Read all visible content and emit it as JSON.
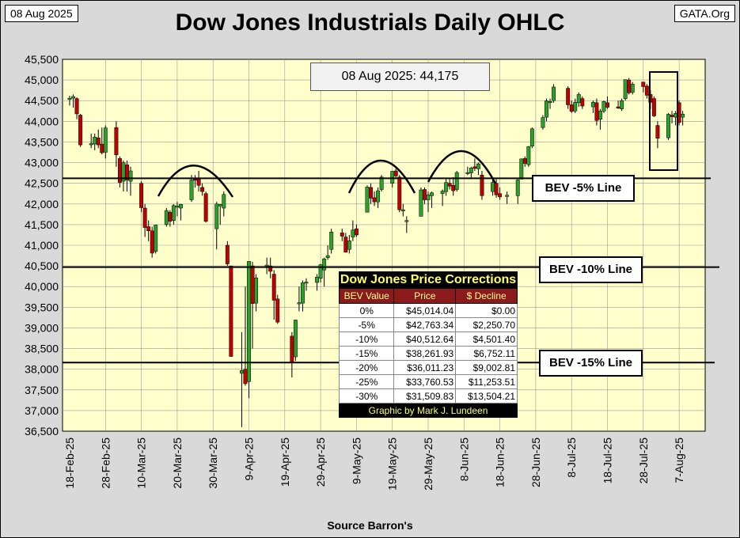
{
  "header": {
    "date_label": "08 Aug 2025",
    "site": "GATA.Org",
    "title": "Dow Jones Industrials Daily OHLC"
  },
  "source": "Source Barron's",
  "annotation": "08 Aug 2025: 44,175",
  "bev_labels": {
    "bev5": "BEV -5% Line",
    "bev10": "BEV -10% Line",
    "bev15": "BEV -15% Line"
  },
  "price_table": {
    "title": "Dow Jones Price Corrections",
    "headers": [
      "BEV Value",
      "Price",
      "$ Decline"
    ],
    "rows": [
      [
        "0%",
        "$45,014.04",
        "$0.00"
      ],
      [
        "-5%",
        "$42,763.34",
        "$2,250.70"
      ],
      [
        "-10%",
        "$40,512.64",
        "$4,501.40"
      ],
      [
        "-15%",
        "$38,261.93",
        "$6,752.11"
      ],
      [
        "-20%",
        "$36,011.23",
        "$9,002.81"
      ],
      [
        "-25%",
        "$33,760.53",
        "$11,253.51"
      ],
      [
        "-30%",
        "$31,509.83",
        "$13,504.21"
      ]
    ],
    "credit": "Graphic by Mark J. Lundeen"
  },
  "colors": {
    "plot_bg": "#ffffcc",
    "up": "#2ca02c",
    "down": "#c00000",
    "grid": "#999999"
  },
  "chart_data": {
    "type": "ohlc",
    "ylim": [
      36500,
      45500
    ],
    "y_ticks": [
      "45,500",
      "45,000",
      "44,500",
      "44,000",
      "43,500",
      "43,000",
      "42,500",
      "42,000",
      "41,500",
      "41,000",
      "40,500",
      "40,000",
      "39,500",
      "39,000",
      "38,500",
      "38,000",
      "37,500",
      "37,000",
      "36,500"
    ],
    "x_ticks": [
      "18-Feb-25",
      "28-Feb-25",
      "10-Mar-25",
      "20-Mar-25",
      "30-Mar-25",
      "9-Apr-25",
      "19-Apr-25",
      "29-Apr-25",
      "9-May-25",
      "19-May-25",
      "29-May-25",
      "8-Jun-25",
      "18-Jun-25",
      "28-Jun-25",
      "8-Jul-25",
      "18-Jul-25",
      "28-Jul-25",
      "7-Aug-25"
    ],
    "reference_lines": [
      {
        "label": "BEV -5% Line",
        "value": 42620
      },
      {
        "label": "BEV -10% Line",
        "value": 40470
      },
      {
        "label": "BEV -15% Line",
        "value": 38160
      }
    ],
    "bars": [
      {
        "x": "2025-02-18",
        "o": 44530,
        "h": 44620,
        "l": 44380,
        "c": 44560
      },
      {
        "x": "2025-02-19",
        "o": 44560,
        "h": 44650,
        "l": 44330,
        "c": 44600
      },
      {
        "x": "2025-02-20",
        "o": 44550,
        "h": 44580,
        "l": 44050,
        "c": 44180
      },
      {
        "x": "2025-02-21",
        "o": 44150,
        "h": 44180,
        "l": 43380,
        "c": 43430
      },
      {
        "x": "2025-02-24",
        "o": 43450,
        "h": 43700,
        "l": 43350,
        "c": 43460
      },
      {
        "x": "2025-02-25",
        "o": 43450,
        "h": 43700,
        "l": 43300,
        "c": 43620
      },
      {
        "x": "2025-02-26",
        "o": 43600,
        "h": 43800,
        "l": 43350,
        "c": 43430
      },
      {
        "x": "2025-02-27",
        "o": 43450,
        "h": 43850,
        "l": 43200,
        "c": 43240
      },
      {
        "x": "2025-02-28",
        "o": 43250,
        "h": 43900,
        "l": 43100,
        "c": 43840
      },
      {
        "x": "2025-03-03",
        "o": 43850,
        "h": 44000,
        "l": 42900,
        "c": 43190
      },
      {
        "x": "2025-03-04",
        "o": 43100,
        "h": 43150,
        "l": 42400,
        "c": 42520
      },
      {
        "x": "2025-03-05",
        "o": 42550,
        "h": 43050,
        "l": 42300,
        "c": 43000
      },
      {
        "x": "2025-03-06",
        "o": 42950,
        "h": 43050,
        "l": 42300,
        "c": 42580
      },
      {
        "x": "2025-03-07",
        "o": 42550,
        "h": 42900,
        "l": 42200,
        "c": 42800
      },
      {
        "x": "2025-03-10",
        "o": 42500,
        "h": 42550,
        "l": 41800,
        "c": 41910
      },
      {
        "x": "2025-03-11",
        "o": 41900,
        "h": 42000,
        "l": 41200,
        "c": 41430
      },
      {
        "x": "2025-03-12",
        "o": 41450,
        "h": 41600,
        "l": 41100,
        "c": 41350
      },
      {
        "x": "2025-03-13",
        "o": 41350,
        "h": 41450,
        "l": 40700,
        "c": 40810
      },
      {
        "x": "2025-03-14",
        "o": 40850,
        "h": 41500,
        "l": 40800,
        "c": 41490
      },
      {
        "x": "2025-03-17",
        "o": 41500,
        "h": 41900,
        "l": 41450,
        "c": 41840
      },
      {
        "x": "2025-03-18",
        "o": 41800,
        "h": 41850,
        "l": 41450,
        "c": 41580
      },
      {
        "x": "2025-03-19",
        "o": 41600,
        "h": 42000,
        "l": 41500,
        "c": 41960
      },
      {
        "x": "2025-03-20",
        "o": 41950,
        "h": 42050,
        "l": 41700,
        "c": 41950
      },
      {
        "x": "2025-03-21",
        "o": 41900,
        "h": 42000,
        "l": 41600,
        "c": 41990
      },
      {
        "x": "2025-03-24",
        "o": 42100,
        "h": 42700,
        "l": 42050,
        "c": 42580
      },
      {
        "x": "2025-03-25",
        "o": 42600,
        "h": 42700,
        "l": 42400,
        "c": 42590
      },
      {
        "x": "2025-03-26",
        "o": 42600,
        "h": 42800,
        "l": 42300,
        "c": 42450
      },
      {
        "x": "2025-03-27",
        "o": 42400,
        "h": 42500,
        "l": 42200,
        "c": 42300
      },
      {
        "x": "2025-03-28",
        "o": 42250,
        "h": 42300,
        "l": 41550,
        "c": 41580
      },
      {
        "x": "2025-03-31",
        "o": 41400,
        "h": 42050,
        "l": 40900,
        "c": 42000
      },
      {
        "x": "2025-04-01",
        "o": 41950,
        "h": 42000,
        "l": 41500,
        "c": 41990
      },
      {
        "x": "2025-04-02",
        "o": 41900,
        "h": 42300,
        "l": 41700,
        "c": 42230
      },
      {
        "x": "2025-04-03",
        "o": 41000,
        "h": 41100,
        "l": 40500,
        "c": 40550
      },
      {
        "x": "2025-04-04",
        "o": 40500,
        "h": 40500,
        "l": 38300,
        "c": 38310
      },
      {
        "x": "2025-04-07",
        "o": 37900,
        "h": 38900,
        "l": 36600,
        "c": 37970
      },
      {
        "x": "2025-04-08",
        "o": 38000,
        "h": 40000,
        "l": 37600,
        "c": 37650
      },
      {
        "x": "2025-04-09",
        "o": 37700,
        "h": 40600,
        "l": 37300,
        "c": 40610
      },
      {
        "x": "2025-04-10",
        "o": 40500,
        "h": 40600,
        "l": 38500,
        "c": 39590
      },
      {
        "x": "2025-04-11",
        "o": 39600,
        "h": 40300,
        "l": 39400,
        "c": 40210
      },
      {
        "x": "2025-04-14",
        "o": 40500,
        "h": 40700,
        "l": 40300,
        "c": 40520
      },
      {
        "x": "2025-04-15",
        "o": 40500,
        "h": 40700,
        "l": 40200,
        "c": 40370
      },
      {
        "x": "2025-04-16",
        "o": 40300,
        "h": 40400,
        "l": 39200,
        "c": 39670
      },
      {
        "x": "2025-04-17",
        "o": 39700,
        "h": 39800,
        "l": 39100,
        "c": 39140
      },
      {
        "x": "2025-04-21",
        "o": 38800,
        "h": 38900,
        "l": 37800,
        "c": 38170
      },
      {
        "x": "2025-04-22",
        "o": 38300,
        "h": 39200,
        "l": 38200,
        "c": 39190
      },
      {
        "x": "2025-04-23",
        "o": 39600,
        "h": 40000,
        "l": 39400,
        "c": 39610
      },
      {
        "x": "2025-04-24",
        "o": 39600,
        "h": 40150,
        "l": 39400,
        "c": 40090
      },
      {
        "x": "2025-04-25",
        "o": 40100,
        "h": 40200,
        "l": 39900,
        "c": 40110
      },
      {
        "x": "2025-04-28",
        "o": 40100,
        "h": 40300,
        "l": 39900,
        "c": 40230
      },
      {
        "x": "2025-04-29",
        "o": 40200,
        "h": 40550,
        "l": 40100,
        "c": 40530
      },
      {
        "x": "2025-04-30",
        "o": 40400,
        "h": 40700,
        "l": 40000,
        "c": 40670
      },
      {
        "x": "2025-05-01",
        "o": 40700,
        "h": 41000,
        "l": 40650,
        "c": 40750
      },
      {
        "x": "2025-05-02",
        "o": 40900,
        "h": 41400,
        "l": 40800,
        "c": 41320
      },
      {
        "x": "2025-05-05",
        "o": 41300,
        "h": 41400,
        "l": 41100,
        "c": 41220
      },
      {
        "x": "2025-05-06",
        "o": 41200,
        "h": 41300,
        "l": 40900,
        "c": 40830
      },
      {
        "x": "2025-05-07",
        "o": 40900,
        "h": 41250,
        "l": 40800,
        "c": 41110
      },
      {
        "x": "2025-05-08",
        "o": 41200,
        "h": 41600,
        "l": 41100,
        "c": 41370
      },
      {
        "x": "2025-05-09",
        "o": 41400,
        "h": 41500,
        "l": 41200,
        "c": 41250
      },
      {
        "x": "2025-05-12",
        "o": 41800,
        "h": 42450,
        "l": 41800,
        "c": 42410
      },
      {
        "x": "2025-05-13",
        "o": 42400,
        "h": 42500,
        "l": 42000,
        "c": 42140
      },
      {
        "x": "2025-05-14",
        "o": 42150,
        "h": 42300,
        "l": 41950,
        "c": 42050
      },
      {
        "x": "2025-05-15",
        "o": 42050,
        "h": 42400,
        "l": 41900,
        "c": 42320
      },
      {
        "x": "2025-05-16",
        "o": 42350,
        "h": 42700,
        "l": 42300,
        "c": 42650
      },
      {
        "x": "2025-05-19",
        "o": 42500,
        "h": 42800,
        "l": 42400,
        "c": 42790
      },
      {
        "x": "2025-05-20",
        "o": 42800,
        "h": 42850,
        "l": 42600,
        "c": 42680
      },
      {
        "x": "2025-05-21",
        "o": 42650,
        "h": 42700,
        "l": 41800,
        "c": 41860
      },
      {
        "x": "2025-05-22",
        "o": 41850,
        "h": 42000,
        "l": 41700,
        "c": 41860
      },
      {
        "x": "2025-05-23",
        "o": 41600,
        "h": 41700,
        "l": 41300,
        "c": 41600
      },
      {
        "x": "2025-05-27",
        "o": 41700,
        "h": 42400,
        "l": 41700,
        "c": 42340
      },
      {
        "x": "2025-05-28",
        "o": 42350,
        "h": 42400,
        "l": 42000,
        "c": 42100
      },
      {
        "x": "2025-05-29",
        "o": 42100,
        "h": 42300,
        "l": 41800,
        "c": 42220
      },
      {
        "x": "2025-05-30",
        "o": 42200,
        "h": 42300,
        "l": 41900,
        "c": 42270
      },
      {
        "x": "2025-06-02",
        "o": 42250,
        "h": 42350,
        "l": 41950,
        "c": 42310
      },
      {
        "x": "2025-06-03",
        "o": 42300,
        "h": 42600,
        "l": 42200,
        "c": 42520
      },
      {
        "x": "2025-06-04",
        "o": 42500,
        "h": 42600,
        "l": 42350,
        "c": 42430
      },
      {
        "x": "2025-06-05",
        "o": 42450,
        "h": 42650,
        "l": 42200,
        "c": 42320
      },
      {
        "x": "2025-06-06",
        "o": 42350,
        "h": 42800,
        "l": 42300,
        "c": 42760
      },
      {
        "x": "2025-06-09",
        "o": 42750,
        "h": 42900,
        "l": 42700,
        "c": 42760
      },
      {
        "x": "2025-06-10",
        "o": 42750,
        "h": 42900,
        "l": 42600,
        "c": 42870
      },
      {
        "x": "2025-06-11",
        "o": 42900,
        "h": 43100,
        "l": 42800,
        "c": 42860
      },
      {
        "x": "2025-06-12",
        "o": 42850,
        "h": 43000,
        "l": 42700,
        "c": 42970
      },
      {
        "x": "2025-06-13",
        "o": 42700,
        "h": 42800,
        "l": 42100,
        "c": 42200
      },
      {
        "x": "2025-06-16",
        "o": 42300,
        "h": 42600,
        "l": 42200,
        "c": 42520
      },
      {
        "x": "2025-06-17",
        "o": 42500,
        "h": 42600,
        "l": 42150,
        "c": 42220
      },
      {
        "x": "2025-06-18",
        "o": 42250,
        "h": 42400,
        "l": 42100,
        "c": 42170
      },
      {
        "x": "2025-06-20",
        "o": 42200,
        "h": 42300,
        "l": 42000,
        "c": 42210
      },
      {
        "x": "2025-06-23",
        "o": 42200,
        "h": 42600,
        "l": 42000,
        "c": 42580
      },
      {
        "x": "2025-06-24",
        "o": 42600,
        "h": 43100,
        "l": 42600,
        "c": 43090
      },
      {
        "x": "2025-06-25",
        "o": 43100,
        "h": 43150,
        "l": 42900,
        "c": 42980
      },
      {
        "x": "2025-06-26",
        "o": 42950,
        "h": 43400,
        "l": 42900,
        "c": 43390
      },
      {
        "x": "2025-06-27",
        "o": 43400,
        "h": 43850,
        "l": 43350,
        "c": 43820
      },
      {
        "x": "2025-06-30",
        "o": 43850,
        "h": 44150,
        "l": 43800,
        "c": 44090
      },
      {
        "x": "2025-07-01",
        "o": 44100,
        "h": 44550,
        "l": 44000,
        "c": 44490
      },
      {
        "x": "2025-07-02",
        "o": 44450,
        "h": 44550,
        "l": 44300,
        "c": 44480
      },
      {
        "x": "2025-07-03",
        "o": 44500,
        "h": 44900,
        "l": 44450,
        "c": 44830
      },
      {
        "x": "2025-07-07",
        "o": 44800,
        "h": 44850,
        "l": 44300,
        "c": 44400
      },
      {
        "x": "2025-07-08",
        "o": 44400,
        "h": 44500,
        "l": 44200,
        "c": 44240
      },
      {
        "x": "2025-07-09",
        "o": 44250,
        "h": 44550,
        "l": 44200,
        "c": 44460
      },
      {
        "x": "2025-07-10",
        "o": 44450,
        "h": 44700,
        "l": 44350,
        "c": 44650
      },
      {
        "x": "2025-07-11",
        "o": 44550,
        "h": 44600,
        "l": 44300,
        "c": 44370
      },
      {
        "x": "2025-07-14",
        "o": 44350,
        "h": 44500,
        "l": 44200,
        "c": 44460
      },
      {
        "x": "2025-07-15",
        "o": 44450,
        "h": 44550,
        "l": 43900,
        "c": 44020
      },
      {
        "x": "2025-07-16",
        "o": 44050,
        "h": 44300,
        "l": 43800,
        "c": 44250
      },
      {
        "x": "2025-07-17",
        "o": 44250,
        "h": 44500,
        "l": 44200,
        "c": 44480
      },
      {
        "x": "2025-07-18",
        "o": 44450,
        "h": 44600,
        "l": 44300,
        "c": 44340
      },
      {
        "x": "2025-07-21",
        "o": 44350,
        "h": 44500,
        "l": 44300,
        "c": 44320
      },
      {
        "x": "2025-07-22",
        "o": 44300,
        "h": 44550,
        "l": 44250,
        "c": 44500
      },
      {
        "x": "2025-07-23",
        "o": 44550,
        "h": 45000,
        "l": 44500,
        "c": 45010
      },
      {
        "x": "2025-07-24",
        "o": 45000,
        "h": 45050,
        "l": 44650,
        "c": 44690
      },
      {
        "x": "2025-07-25",
        "o": 44700,
        "h": 44950,
        "l": 44650,
        "c": 44900
      },
      {
        "x": "2025-07-28",
        "o": 44950,
        "h": 44950,
        "l": 44700,
        "c": 44840
      },
      {
        "x": "2025-07-29",
        "o": 44850,
        "h": 44900,
        "l": 44550,
        "c": 44630
      },
      {
        "x": "2025-07-30",
        "o": 44650,
        "h": 44750,
        "l": 44300,
        "c": 44460
      },
      {
        "x": "2025-07-31",
        "o": 44550,
        "h": 44600,
        "l": 44100,
        "c": 44130
      },
      {
        "x": "2025-08-01",
        "o": 43900,
        "h": 44000,
        "l": 43350,
        "c": 43590
      },
      {
        "x": "2025-08-04",
        "o": 43600,
        "h": 44200,
        "l": 43550,
        "c": 44170
      },
      {
        "x": "2025-08-05",
        "o": 44150,
        "h": 44250,
        "l": 43950,
        "c": 44110
      },
      {
        "x": "2025-08-06",
        "o": 44100,
        "h": 44250,
        "l": 43900,
        "c": 44190
      },
      {
        "x": "2025-08-07",
        "o": 44450,
        "h": 44500,
        "l": 43900,
        "c": 43970
      },
      {
        "x": "2025-08-08",
        "o": 44100,
        "h": 44250,
        "l": 43900,
        "c": 44175
      }
    ]
  }
}
